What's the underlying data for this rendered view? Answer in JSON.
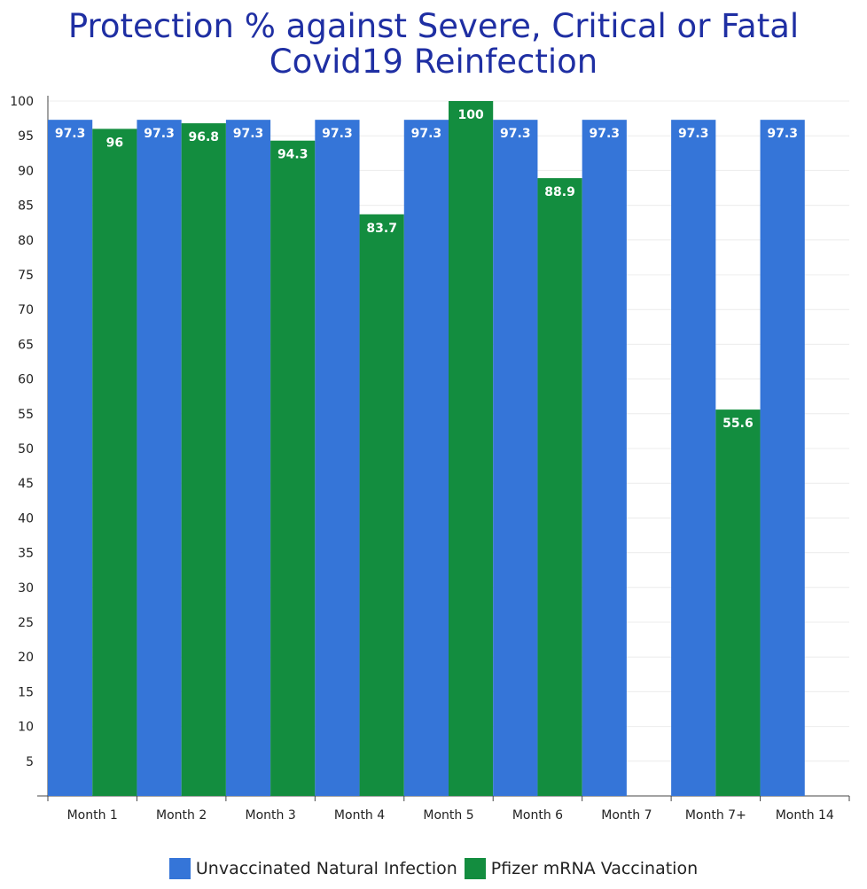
{
  "chart_data": {
    "type": "bar",
    "title": [
      "Protection % against Severe, Critical or Fatal",
      "Covid19 Reinfection"
    ],
    "xlabel": "",
    "ylabel": "",
    "ylim": [
      0,
      100
    ],
    "yticks": [
      5,
      10,
      15,
      20,
      25,
      30,
      35,
      40,
      45,
      50,
      55,
      60,
      65,
      70,
      75,
      80,
      85,
      90,
      95,
      100
    ],
    "grid": true,
    "legend_position": "bottom",
    "categories": [
      "Month 1",
      "Month 2",
      "Month 3",
      "Month 4",
      "Month 5",
      "Month 6",
      "Month 7",
      "Month 7+",
      "Month 14"
    ],
    "series": [
      {
        "name": "Unvaccinated Natural Infection",
        "color": "#3575d8",
        "values": [
          97.3,
          97.3,
          97.3,
          97.3,
          97.3,
          97.3,
          97.3,
          97.3,
          97.3
        ],
        "labels": [
          "97.3",
          "97.3",
          "97.3",
          "97.3",
          "97.3",
          "97.3",
          "97.3",
          "97.3",
          "97.3"
        ]
      },
      {
        "name": "Pfizer mRNA Vaccination",
        "color": "#138d3f",
        "values": [
          96,
          96.8,
          94.3,
          83.7,
          100,
          88.9,
          null,
          55.6,
          null
        ],
        "labels": [
          "96",
          "96.8",
          "94.3",
          "83.7",
          "100",
          "88.9",
          "",
          "55.6",
          ""
        ]
      }
    ]
  }
}
